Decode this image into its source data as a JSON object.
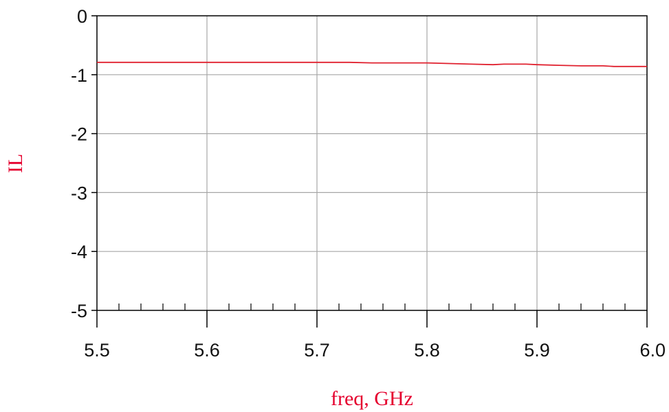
{
  "colors": {
    "background": "#ffffff",
    "axis": "#000000",
    "grid": "#a6a6a6",
    "series": "#e0202e",
    "axis_label": "#e5002e",
    "tick_label": "#111111"
  },
  "chart_data": {
    "type": "line",
    "xlabel": "freq, GHz",
    "ylabel": "IL",
    "xlim": [
      5.5,
      6.0
    ],
    "ylim": [
      -5,
      0
    ],
    "x_ticks": [
      5.5,
      5.6,
      5.7,
      5.8,
      5.9,
      6.0
    ],
    "x_tick_labels": [
      "5.5",
      "5.6",
      "5.7",
      "5.8",
      "5.9",
      "6.0"
    ],
    "y_ticks": [
      0,
      -1,
      -2,
      -3,
      -4,
      -5
    ],
    "y_tick_labels": [
      "0",
      "-1",
      "-2",
      "-3",
      "-4",
      "-5"
    ],
    "x_minor_step": 0.02,
    "grid": true,
    "series": [
      {
        "name": "",
        "x": [
          5.5,
          5.55,
          5.6,
          5.65,
          5.7,
          5.73,
          5.75,
          5.8,
          5.82,
          5.84,
          5.86,
          5.87,
          5.89,
          5.9,
          5.92,
          5.94,
          5.96,
          5.97,
          6.0
        ],
        "y": [
          -0.79,
          -0.79,
          -0.79,
          -0.79,
          -0.79,
          -0.79,
          -0.8,
          -0.8,
          -0.81,
          -0.82,
          -0.83,
          -0.82,
          -0.82,
          -0.83,
          -0.84,
          -0.85,
          -0.85,
          -0.86,
          -0.86
        ]
      }
    ]
  }
}
